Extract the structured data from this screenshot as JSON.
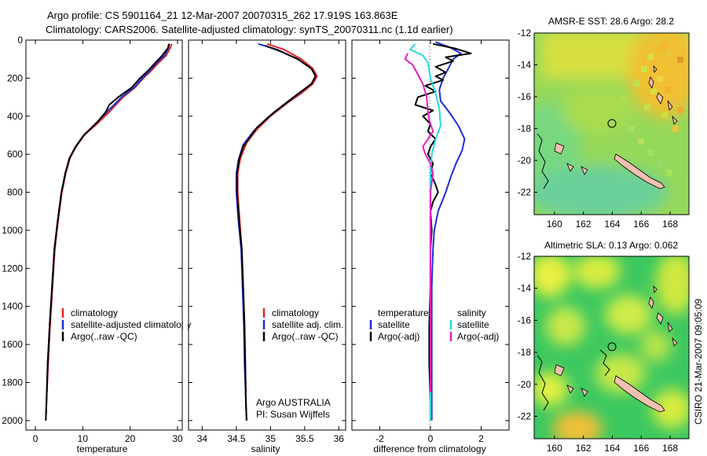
{
  "title": {
    "line1": "Argo profile: CS 5901164_21 12-Mar-2007 20070315_262 17.919S 163.863E",
    "line2": "Climatology: CARS2006. Satellite-adjusted climatology: synTS_20070311.nc (1.1d earlier)"
  },
  "colors": {
    "climatology": "#e8221f",
    "satellite": "#1a2ed8",
    "argo": "#000000",
    "sat_salinity": "#22d8e0",
    "argo_salinity": "#e020c0",
    "coast": "#000000",
    "land": "#f2c0b0"
  },
  "chart_data": [
    {
      "type": "line",
      "name": "temperature-panel",
      "xlabel": "temperature",
      "ylabel": "",
      "xlim": [
        -2,
        31
      ],
      "ylim": [
        2050,
        0
      ],
      "xticks": [
        0,
        10,
        20,
        30
      ],
      "yticks": [
        0,
        200,
        400,
        600,
        800,
        1000,
        1200,
        1400,
        1600,
        1800,
        2000
      ],
      "legend": {
        "position": "lower-right",
        "entries": [
          "climatology",
          "satellite-adjusted climatology",
          "Argo(..raw -QC)"
        ]
      },
      "series": [
        {
          "name": "climatology",
          "color_key": "climatology",
          "points": [
            [
              28.8,
              20
            ],
            [
              28.5,
              40
            ],
            [
              27.6,
              80
            ],
            [
              26.0,
              120
            ],
            [
              24.5,
              160
            ],
            [
              22.8,
              200
            ],
            [
              21.0,
              250
            ],
            [
              18.5,
              300
            ],
            [
              15.5,
              380
            ],
            [
              13.0,
              440
            ],
            [
              10.3,
              500
            ],
            [
              8.6,
              560
            ],
            [
              7.3,
              620
            ],
            [
              6.4,
              700
            ],
            [
              5.6,
              800
            ],
            [
              4.8,
              950
            ],
            [
              4.1,
              1100
            ],
            [
              3.6,
              1300
            ],
            [
              3.1,
              1500
            ],
            [
              2.7,
              1700
            ],
            [
              2.45,
              1850
            ]
          ]
        },
        {
          "name": "satellite-adjusted climatology",
          "color_key": "satellite",
          "points": [
            [
              28.3,
              20
            ],
            [
              28.1,
              40
            ],
            [
              27.3,
              80
            ],
            [
              25.6,
              120
            ],
            [
              24.2,
              160
            ],
            [
              22.6,
              200
            ],
            [
              20.8,
              250
            ],
            [
              18.2,
              300
            ],
            [
              15.0,
              380
            ],
            [
              12.7,
              440
            ],
            [
              10.2,
              500
            ],
            [
              8.5,
              560
            ],
            [
              7.2,
              620
            ],
            [
              6.3,
              700
            ],
            [
              5.5,
              800
            ],
            [
              4.7,
              950
            ],
            [
              4.0,
              1100
            ],
            [
              3.5,
              1300
            ],
            [
              3.0,
              1500
            ],
            [
              2.6,
              1700
            ],
            [
              2.35,
              1900
            ],
            [
              2.2,
              2000
            ]
          ]
        },
        {
          "name": "Argo(..raw -QC)",
          "color_key": "argo",
          "points": [
            [
              28.2,
              20
            ],
            [
              28.0,
              40
            ],
            [
              26.8,
              80
            ],
            [
              25.3,
              120
            ],
            [
              23.8,
              160
            ],
            [
              22.1,
              200
            ],
            [
              20.3,
              250
            ],
            [
              17.5,
              300
            ],
            [
              15.6,
              340
            ],
            [
              14.8,
              380
            ],
            [
              13.1,
              430
            ],
            [
              10.2,
              500
            ],
            [
              8.5,
              560
            ],
            [
              7.2,
              620
            ],
            [
              6.3,
              700
            ],
            [
              5.5,
              800
            ],
            [
              4.7,
              950
            ],
            [
              4.0,
              1100
            ],
            [
              3.5,
              1300
            ],
            [
              3.0,
              1500
            ],
            [
              2.6,
              1700
            ],
            [
              2.35,
              1900
            ],
            [
              2.2,
              2000
            ]
          ]
        }
      ]
    },
    {
      "type": "line",
      "name": "salinity-panel",
      "xlabel": "salinity",
      "xlim": [
        33.8,
        36.1
      ],
      "ylim": [
        2050,
        0
      ],
      "xticks": [
        34,
        34.5,
        35,
        35.5,
        36
      ],
      "legend": {
        "position": "lower-right",
        "entries": [
          "climatology",
          "satellite adj. clim.",
          "Argo(..raw -QC)"
        ]
      },
      "annotation": {
        "line1": "Argo AUSTRALIA",
        "line2": "PI: Susan Wijffels"
      },
      "series": [
        {
          "name": "climatology",
          "color_key": "climatology",
          "points": [
            [
              34.95,
              20
            ],
            [
              35.2,
              50
            ],
            [
              35.45,
              100
            ],
            [
              35.62,
              150
            ],
            [
              35.68,
              190
            ],
            [
              35.62,
              230
            ],
            [
              35.45,
              280
            ],
            [
              35.25,
              330
            ],
            [
              35.0,
              400
            ],
            [
              34.8,
              470
            ],
            [
              34.65,
              540
            ],
            [
              34.56,
              620
            ],
            [
              34.52,
              700
            ],
            [
              34.52,
              800
            ],
            [
              34.55,
              950
            ],
            [
              34.58,
              1100
            ],
            [
              34.6,
              1300
            ],
            [
              34.62,
              1500
            ],
            [
              34.63,
              1700
            ],
            [
              34.64,
              1850
            ]
          ]
        },
        {
          "name": "satellite adj. clim.",
          "color_key": "satellite",
          "points": [
            [
              34.82,
              20
            ],
            [
              35.1,
              50
            ],
            [
              35.4,
              100
            ],
            [
              35.6,
              150
            ],
            [
              35.66,
              190
            ],
            [
              35.6,
              230
            ],
            [
              35.42,
              280
            ],
            [
              35.2,
              340
            ],
            [
              34.95,
              410
            ],
            [
              34.75,
              480
            ],
            [
              34.6,
              550
            ],
            [
              34.53,
              630
            ],
            [
              34.5,
              700
            ],
            [
              34.5,
              800
            ],
            [
              34.53,
              950
            ],
            [
              34.57,
              1100
            ],
            [
              34.59,
              1300
            ],
            [
              34.61,
              1500
            ],
            [
              34.62,
              1700
            ],
            [
              34.64,
              1900
            ],
            [
              34.65,
              2000
            ]
          ]
        },
        {
          "name": "Argo(..raw -QC)",
          "color_key": "argo",
          "points": [
            [
              34.93,
              30
            ],
            [
              35.15,
              60
            ],
            [
              35.4,
              100
            ],
            [
              35.6,
              150
            ],
            [
              35.66,
              190
            ],
            [
              35.6,
              230
            ],
            [
              35.45,
              270
            ],
            [
              35.3,
              310
            ],
            [
              35.05,
              380
            ],
            [
              34.8,
              460
            ],
            [
              34.66,
              530
            ],
            [
              34.6,
              560
            ],
            [
              34.54,
              630
            ],
            [
              34.51,
              700
            ],
            [
              34.51,
              800
            ],
            [
              34.54,
              950
            ],
            [
              34.58,
              1100
            ],
            [
              34.6,
              1300
            ],
            [
              34.62,
              1500
            ],
            [
              34.63,
              1700
            ],
            [
              34.64,
              1900
            ],
            [
              34.65,
              2000
            ]
          ]
        }
      ]
    },
    {
      "type": "line",
      "name": "difference-panel",
      "xlabel": "difference from climatology",
      "xlim": [
        -3.1,
        3.1
      ],
      "ylim": [
        2050,
        0
      ],
      "xticks": [
        -2,
        0,
        2
      ],
      "legend": {
        "position": "lower",
        "entries": [
          "temperature",
          "satellite",
          "Argo(-adj)",
          "salinity",
          "satellite",
          "Argo(-adj)"
        ]
      },
      "series": [
        {
          "name": "temperature satellite",
          "color_key": "satellite",
          "points": [
            [
              0.2,
              10
            ],
            [
              0.8,
              40
            ],
            [
              1.2,
              70
            ],
            [
              0.9,
              100
            ],
            [
              0.7,
              150
            ],
            [
              0.5,
              200
            ],
            [
              0.35,
              260
            ],
            [
              0.4,
              320
            ],
            [
              0.8,
              390
            ],
            [
              1.1,
              450
            ],
            [
              1.35,
              520
            ],
            [
              1.25,
              580
            ],
            [
              1.0,
              650
            ],
            [
              0.8,
              720
            ],
            [
              0.6,
              800
            ],
            [
              0.3,
              900
            ],
            [
              0.15,
              1000
            ],
            [
              0.1,
              1100
            ],
            [
              0.05,
              1300
            ],
            [
              0.05,
              1600
            ],
            [
              0.05,
              2000
            ]
          ]
        },
        {
          "name": "temperature Argo(-adj)",
          "color_key": "argo",
          "points": [
            [
              0.1,
              20
            ],
            [
              1.0,
              45
            ],
            [
              1.6,
              70
            ],
            [
              0.6,
              90
            ],
            [
              0.9,
              110
            ],
            [
              0.2,
              140
            ],
            [
              0.6,
              170
            ],
            [
              0.2,
              190
            ],
            [
              0.5,
              210
            ],
            [
              -0.2,
              240
            ],
            [
              0.2,
              270
            ],
            [
              -0.5,
              300
            ],
            [
              -0.6,
              340
            ],
            [
              0.1,
              370
            ],
            [
              -0.3,
              400
            ],
            [
              0.0,
              440
            ],
            [
              -0.1,
              480
            ],
            [
              0.2,
              520
            ],
            [
              0.0,
              560
            ],
            [
              -0.1,
              600
            ],
            [
              0.1,
              650
            ],
            [
              0.0,
              700
            ],
            [
              0.2,
              760
            ],
            [
              0.3,
              800
            ],
            [
              0.1,
              850
            ],
            [
              0.0,
              900
            ],
            [
              0.05,
              1000
            ],
            [
              0.0,
              1100
            ],
            [
              0.0,
              1300
            ],
            [
              -0.05,
              1500
            ],
            [
              -0.05,
              1700
            ],
            [
              0.0,
              1900
            ],
            [
              0.0,
              2000
            ]
          ]
        },
        {
          "name": "salinity satellite",
          "color_key": "sat_salinity",
          "points": [
            [
              -0.6,
              20
            ],
            [
              -0.8,
              50
            ],
            [
              -0.3,
              80
            ],
            [
              -0.1,
              120
            ],
            [
              0.0,
              200
            ],
            [
              0.2,
              280
            ],
            [
              0.35,
              360
            ],
            [
              0.4,
              450
            ],
            [
              0.2,
              520
            ],
            [
              0.05,
              600
            ],
            [
              0.0,
              700
            ],
            [
              0.0,
              900
            ],
            [
              0.0,
              1100
            ],
            [
              0.0,
              1400
            ],
            [
              0.0,
              1700
            ],
            [
              0.0,
              2000
            ]
          ]
        },
        {
          "name": "salinity Argo(-adj)",
          "color_key": "argo_salinity",
          "points": [
            [
              -0.9,
              70
            ],
            [
              -1.0,
              100
            ],
            [
              -0.7,
              130
            ],
            [
              -0.5,
              180
            ],
            [
              -0.3,
              230
            ],
            [
              -0.15,
              300
            ],
            [
              -0.1,
              380
            ],
            [
              -0.05,
              420
            ],
            [
              0.1,
              480
            ],
            [
              -0.1,
              520
            ],
            [
              -0.3,
              560
            ],
            [
              -0.2,
              600
            ],
            [
              0.0,
              650
            ],
            [
              0.1,
              700
            ],
            [
              0.0,
              800
            ],
            [
              0.0,
              1000
            ],
            [
              0.0,
              1300
            ],
            [
              0.0,
              1600
            ],
            [
              0.0,
              1850
            ]
          ]
        }
      ]
    },
    {
      "type": "heatmap",
      "name": "sst-map",
      "title": "AMSR-E SST: 28.6 Argo: 28.2",
      "xlim": [
        158.6,
        169.3
      ],
      "ylim": [
        -23.4,
        -12
      ],
      "xticks": [
        160,
        162,
        164,
        166,
        168
      ],
      "yticks": [
        -12,
        -14,
        -16,
        -18,
        -20,
        -22
      ],
      "profile_location": [
        163.863,
        -17.919
      ]
    },
    {
      "type": "heatmap",
      "name": "sla-map",
      "title": "Altimetric SLA: 0.13 Argo: 0.062",
      "xlim": [
        158.6,
        169.3
      ],
      "ylim": [
        -23.4,
        -12
      ],
      "xticks": [
        160,
        162,
        164,
        166,
        168
      ],
      "yticks": [
        -12,
        -14,
        -16,
        -18,
        -20,
        -22
      ],
      "profile_location": [
        163.863,
        -17.919
      ]
    }
  ],
  "stamp": "CSIRO 21-Mar-2007 09:05:09"
}
